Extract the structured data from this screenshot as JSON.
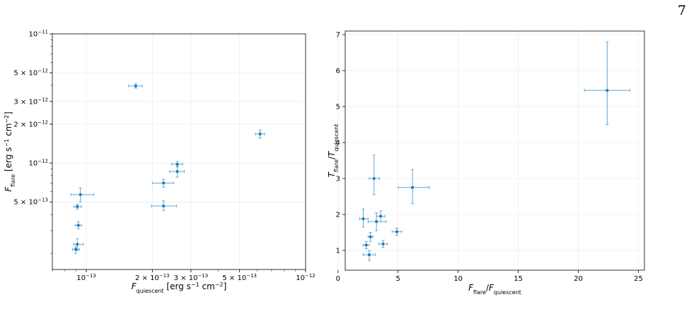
{
  "page_number": "7",
  "colors": {
    "marker": "#1f77b4",
    "errorbar": "#5fa8d8",
    "grid": "#ececec"
  },
  "chart_data": [
    {
      "type": "scatter",
      "xscale": "log",
      "yscale": "log",
      "grid": true,
      "xlim": [
        7e-14,
        1e-12
      ],
      "ylim": [
        1.5e-13,
        1e-11
      ],
      "xlabel": {
        "base": "F",
        "sub": "quiescent",
        "unit": " [erg s",
        "exp1": "−1",
        "mid": " cm",
        "exp2": "−2",
        "end": "]"
      },
      "ylabel": {
        "base": "F",
        "sub": "flare",
        "unit": " [erg s",
        "exp1": "−1",
        "mid": " cm",
        "exp2": "−2",
        "end": "]"
      },
      "x_ticks": [
        {
          "value": 1e-13,
          "mant": "10",
          "exp": "−13"
        },
        {
          "value": 2e-13,
          "mant": "2 × 10",
          "exp": "−13"
        },
        {
          "value": 3e-13,
          "mant": "3 × 10",
          "exp": "−13"
        },
        {
          "value": 5e-13,
          "mant": "5 × 10",
          "exp": "−13"
        },
        {
          "value": 1e-12,
          "mant": "10",
          "exp": "−12"
        }
      ],
      "y_ticks": [
        {
          "value": 5e-13,
          "mant": "5 × 10",
          "exp": "−13"
        },
        {
          "value": 1e-12,
          "mant": "10",
          "exp": "−12"
        },
        {
          "value": 2e-12,
          "mant": "2 × 10",
          "exp": "−12"
        },
        {
          "value": 3e-12,
          "mant": "3 × 10",
          "exp": "−12"
        },
        {
          "value": 5e-12,
          "mant": "5 × 10",
          "exp": "−12"
        },
        {
          "value": 1e-11,
          "mant": "10",
          "exp": "−11"
        }
      ],
      "points": [
        {
          "x": 1.68e-13,
          "y": 3.95e-12,
          "xerr": [
            1.56e-13,
            1.8e-13
          ],
          "yerr": [
            3.8e-12,
            4.1e-12
          ]
        },
        {
          "x": 6.2e-13,
          "y": 1.68e-12,
          "xerr": [
            5.9e-13,
            6.5e-13
          ],
          "yerr": [
            1.56e-12,
            1.8e-12
          ]
        },
        {
          "x": 2.6e-13,
          "y": 9.8e-13,
          "xerr": [
            2.45e-13,
            2.75e-13
          ],
          "yerr": [
            9.3e-13,
            1.03e-12
          ]
        },
        {
          "x": 2.6e-13,
          "y": 8.6e-13,
          "xerr": [
            2.4e-13,
            2.8e-13
          ],
          "yerr": [
            7.8e-13,
            9.5e-13
          ]
        },
        {
          "x": 2.25e-13,
          "y": 7e-13,
          "xerr": [
            2e-13,
            2.5e-13
          ],
          "yerr": [
            6.5e-13,
            7.5e-13
          ]
        },
        {
          "x": 2.25e-13,
          "y": 4.65e-13,
          "xerr": [
            1.98e-13,
            2.58e-13
          ],
          "yerr": [
            4.3e-13,
            5.1e-13
          ]
        },
        {
          "x": 9.4e-14,
          "y": 5.7e-13,
          "xerr": [
            8.5e-14,
            1.08e-13
          ],
          "yerr": [
            5e-13,
            6.4e-13
          ]
        },
        {
          "x": 9.1e-14,
          "y": 4.6e-13,
          "xerr": [
            8.8e-14,
            9.5e-14
          ],
          "yerr": [
            4.4e-13,
            4.8e-13
          ]
        },
        {
          "x": 9.2e-14,
          "y": 3.3e-13,
          "xerr": [
            8.9e-14,
            9.5e-14
          ],
          "yerr": [
            3.1e-13,
            3.5e-13
          ]
        },
        {
          "x": 9.1e-14,
          "y": 2.35e-13,
          "xerr": [
            8.75e-14,
            9.7e-14
          ],
          "yerr": [
            2.1e-13,
            2.6e-13
          ]
        },
        {
          "x": 8.95e-14,
          "y": 2.15e-13,
          "xerr": [
            8.65e-14,
            9.3e-14
          ],
          "yerr": [
            2e-13,
            2.25e-13
          ]
        }
      ]
    },
    {
      "type": "scatter",
      "grid": true,
      "xlim": [
        0.6,
        25.5
      ],
      "ylim": [
        0.45,
        7.1
      ],
      "xlabel": {
        "base": "F",
        "sub": "flare",
        "sep": "/",
        "base2": "F",
        "sub2": "quiescent"
      },
      "ylabel": {
        "base": "T",
        "sub": "flare",
        "sep": "/",
        "base2": "T",
        "sub2": "quiescent"
      },
      "x_ticks": [
        0,
        5,
        10,
        15,
        20,
        25
      ],
      "y_ticks": [
        1,
        2,
        3,
        4,
        5,
        6,
        7
      ],
      "points": [
        {
          "x": 22.4,
          "y": 5.45,
          "xerr": [
            20.5,
            24.3
          ],
          "yerr": [
            4.5,
            6.8
          ]
        },
        {
          "x": 6.2,
          "y": 2.75,
          "xerr": [
            5.0,
            7.6
          ],
          "yerr": [
            2.3,
            3.25
          ]
        },
        {
          "x": 3.0,
          "y": 3.0,
          "xerr": [
            2.6,
            3.45
          ],
          "yerr": [
            2.55,
            3.65
          ]
        },
        {
          "x": 2.1,
          "y": 1.88,
          "xerr": [
            1.8,
            2.5
          ],
          "yerr": [
            1.65,
            2.15
          ]
        },
        {
          "x": 3.2,
          "y": 1.8,
          "xerr": [
            2.5,
            4.0
          ],
          "yerr": [
            1.55,
            2.05
          ]
        },
        {
          "x": 3.55,
          "y": 1.95,
          "xerr": [
            3.2,
            3.9
          ],
          "yerr": [
            1.8,
            2.1
          ]
        },
        {
          "x": 4.9,
          "y": 1.52,
          "xerr": [
            4.5,
            5.3
          ],
          "yerr": [
            1.42,
            1.62
          ]
        },
        {
          "x": 2.7,
          "y": 1.38,
          "xerr": [
            2.5,
            2.9
          ],
          "yerr": [
            1.25,
            1.5
          ]
        },
        {
          "x": 2.35,
          "y": 1.15,
          "xerr": [
            2.1,
            2.6
          ],
          "yerr": [
            1.05,
            1.25
          ]
        },
        {
          "x": 3.75,
          "y": 1.18,
          "xerr": [
            3.4,
            4.1
          ],
          "yerr": [
            1.08,
            1.28
          ]
        },
        {
          "x": 2.6,
          "y": 0.88,
          "xerr": [
            2.1,
            3.1
          ],
          "yerr": [
            0.72,
            1.0
          ]
        }
      ]
    }
  ]
}
